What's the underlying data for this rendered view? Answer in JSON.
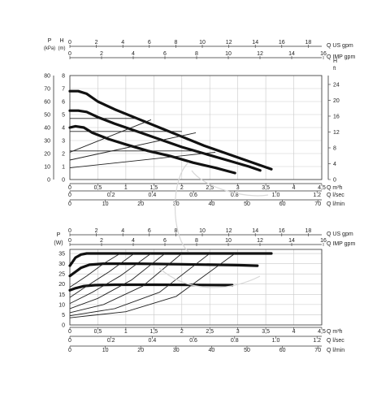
{
  "chart_data": [
    {
      "type": "line",
      "title": "",
      "x_axes": {
        "q_us_gpm": {
          "label": "Q US gpm",
          "ticks": [
            "0",
            "2",
            "4",
            "6",
            "8",
            "10",
            "12",
            "14",
            "16",
            "18"
          ]
        },
        "q_imp_gpm": {
          "label": "Q IMP gpm",
          "ticks": [
            "0",
            "2",
            "4",
            "6",
            "8",
            "10",
            "12",
            "14",
            "16"
          ]
        },
        "q_m3h": {
          "label": "Q m³h",
          "ticks": [
            "0",
            "0,5",
            "1",
            "1,5",
            "2",
            "2,5",
            "3",
            "3,5",
            "4",
            "4,5"
          ]
        },
        "q_lsec": {
          "label": "Q l/sec",
          "ticks": [
            "0",
            "0.2",
            "0.4",
            "0.6",
            "0.8",
            "1.0",
            "1.2"
          ]
        },
        "q_lmin": {
          "label": "Q l/min",
          "ticks": [
            "0",
            "10",
            "20",
            "30",
            "40",
            "50",
            "60",
            "70"
          ]
        }
      },
      "y_axes": {
        "p_kpa": {
          "label_top": "P",
          "label_unit": "(kPa)",
          "ticks": [
            "0",
            "10",
            "20",
            "30",
            "40",
            "50",
            "60",
            "70",
            "80"
          ]
        },
        "h_m": {
          "label_top": "H",
          "label_unit": "(m)",
          "ticks": [
            "0",
            "1",
            "2",
            "3",
            "4",
            "5",
            "6",
            "7",
            "8"
          ]
        },
        "h_ft": {
          "label_top": "H",
          "label_unit": "ft",
          "ticks": [
            "0",
            "4",
            "8",
            "12",
            "16",
            "20",
            "24"
          ]
        }
      },
      "xlim": [
        0,
        4.5
      ],
      "ylim": [
        0,
        8
      ],
      "grid": true,
      "series": [
        {
          "style": "thick",
          "x": [
            0,
            0.15,
            0.3,
            0.5,
            0.8,
            1.2,
            1.6,
            2.0,
            2.4,
            2.8,
            3.2,
            3.6
          ],
          "y": [
            6.8,
            6.8,
            6.6,
            6.0,
            5.4,
            4.7,
            4.0,
            3.3,
            2.6,
            2.0,
            1.4,
            0.8
          ]
        },
        {
          "style": "thick",
          "x": [
            0,
            0.15,
            0.3,
            0.5,
            0.8,
            1.2,
            1.6,
            2.0,
            2.4,
            2.8,
            3.2,
            3.4
          ],
          "y": [
            5.3,
            5.3,
            5.2,
            4.8,
            4.3,
            3.7,
            3.1,
            2.5,
            2.0,
            1.5,
            1.0,
            0.7
          ]
        },
        {
          "style": "thick",
          "x": [
            0,
            0.1,
            0.25,
            0.4,
            0.7,
            1.0,
            1.4,
            1.8,
            2.2,
            2.6,
            2.95
          ],
          "y": [
            4.0,
            4.1,
            4.0,
            3.6,
            3.1,
            2.7,
            2.2,
            1.8,
            1.3,
            0.9,
            0.5
          ]
        },
        {
          "style": "thin",
          "x": [
            0,
            1.25
          ],
          "y": [
            4.7,
            4.7
          ]
        },
        {
          "style": "thin",
          "x": [
            0,
            2.0
          ],
          "y": [
            3.7,
            3.7
          ]
        },
        {
          "style": "thin",
          "x": [
            0,
            2.3
          ],
          "y": [
            2.2,
            2.2
          ]
        },
        {
          "style": "thin",
          "x": [
            0,
            1.45
          ],
          "y": [
            2.1,
            4.6
          ]
        },
        {
          "style": "thin",
          "x": [
            0,
            2.25
          ],
          "y": [
            1.5,
            3.6
          ]
        },
        {
          "style": "thin",
          "x": [
            0,
            2.6
          ],
          "y": [
            0.9,
            2.1
          ]
        }
      ]
    },
    {
      "type": "line",
      "title": "",
      "x_axes": {
        "q_us_gpm": {
          "label": "Q US gpm",
          "ticks": [
            "0",
            "2",
            "4",
            "6",
            "8",
            "10",
            "12",
            "14",
            "16",
            "18"
          ]
        },
        "q_imp_gpm": {
          "label": "Q IMP gpm",
          "ticks": [
            "0",
            "2",
            "4",
            "6",
            "8",
            "10",
            "12",
            "14",
            "16"
          ]
        },
        "q_m3h": {
          "label": "Q m³h",
          "ticks": [
            "0",
            "0,5",
            "1",
            "1,5",
            "2",
            "2,5",
            "3",
            "3,5",
            "4",
            "4,5"
          ]
        },
        "q_lsec": {
          "label": "Q l/sec",
          "ticks": [
            "0",
            "0.2",
            "0.4",
            "0.6",
            "0.8",
            "1.0",
            "1.2"
          ]
        },
        "q_lmin": {
          "label": "Q l/min",
          "ticks": [
            "0",
            "10",
            "20",
            "30",
            "40",
            "50",
            "60",
            "70"
          ]
        }
      },
      "y_axes": {
        "p_w": {
          "label_top": "P",
          "label_unit": "(W)",
          "ticks": [
            "0",
            "5",
            "10",
            "15",
            "20",
            "25",
            "30",
            "35"
          ]
        }
      },
      "xlim": [
        0,
        4.5
      ],
      "ylim": [
        0,
        37
      ],
      "grid": true,
      "series": [
        {
          "style": "thick",
          "x": [
            0,
            0.1,
            0.2,
            0.3,
            0.5,
            1.0,
            2.0,
            3.0,
            3.6
          ],
          "y": [
            29,
            33,
            34.5,
            35,
            35,
            35,
            35,
            35,
            35
          ]
        },
        {
          "style": "thick",
          "x": [
            0,
            0.1,
            0.2,
            0.35,
            0.6,
            1.2,
            2.0,
            3.0,
            3.35
          ],
          "y": [
            24,
            26,
            28,
            29.5,
            30,
            30,
            29.7,
            29.3,
            29
          ]
        },
        {
          "style": "thick",
          "x": [
            0,
            0.1,
            0.25,
            0.45,
            0.8,
            1.5,
            2.2,
            2.9
          ],
          "y": [
            17,
            18,
            19,
            19.5,
            19.7,
            19.7,
            19.6,
            19.5
          ]
        },
        {
          "style": "thin",
          "x": [
            0,
            0.3,
            0.6,
            0.9
          ],
          "y": [
            18.5,
            24,
            30,
            35
          ]
        },
        {
          "style": "thin",
          "x": [
            0,
            0.3,
            0.7,
            1.15
          ],
          "y": [
            13.5,
            19,
            26,
            35
          ]
        },
        {
          "style": "thin",
          "x": [
            0,
            0.4,
            0.9,
            1.45
          ],
          "y": [
            10.5,
            16,
            24,
            35
          ]
        },
        {
          "style": "thin",
          "x": [
            0,
            0.5,
            1.1,
            1.7
          ],
          "y": [
            8,
            13,
            22,
            35
          ]
        },
        {
          "style": "thin",
          "x": [
            0,
            0.6,
            1.3,
            2.0
          ],
          "y": [
            6,
            10,
            19,
            35
          ]
        },
        {
          "style": "thin",
          "x": [
            0,
            0.8,
            1.6,
            2.5
          ],
          "y": [
            4.5,
            8,
            16,
            35
          ]
        },
        {
          "style": "thin",
          "x": [
            0,
            1.0,
            1.9,
            2.95
          ],
          "y": [
            3.5,
            6.5,
            14,
            35
          ]
        }
      ]
    }
  ]
}
